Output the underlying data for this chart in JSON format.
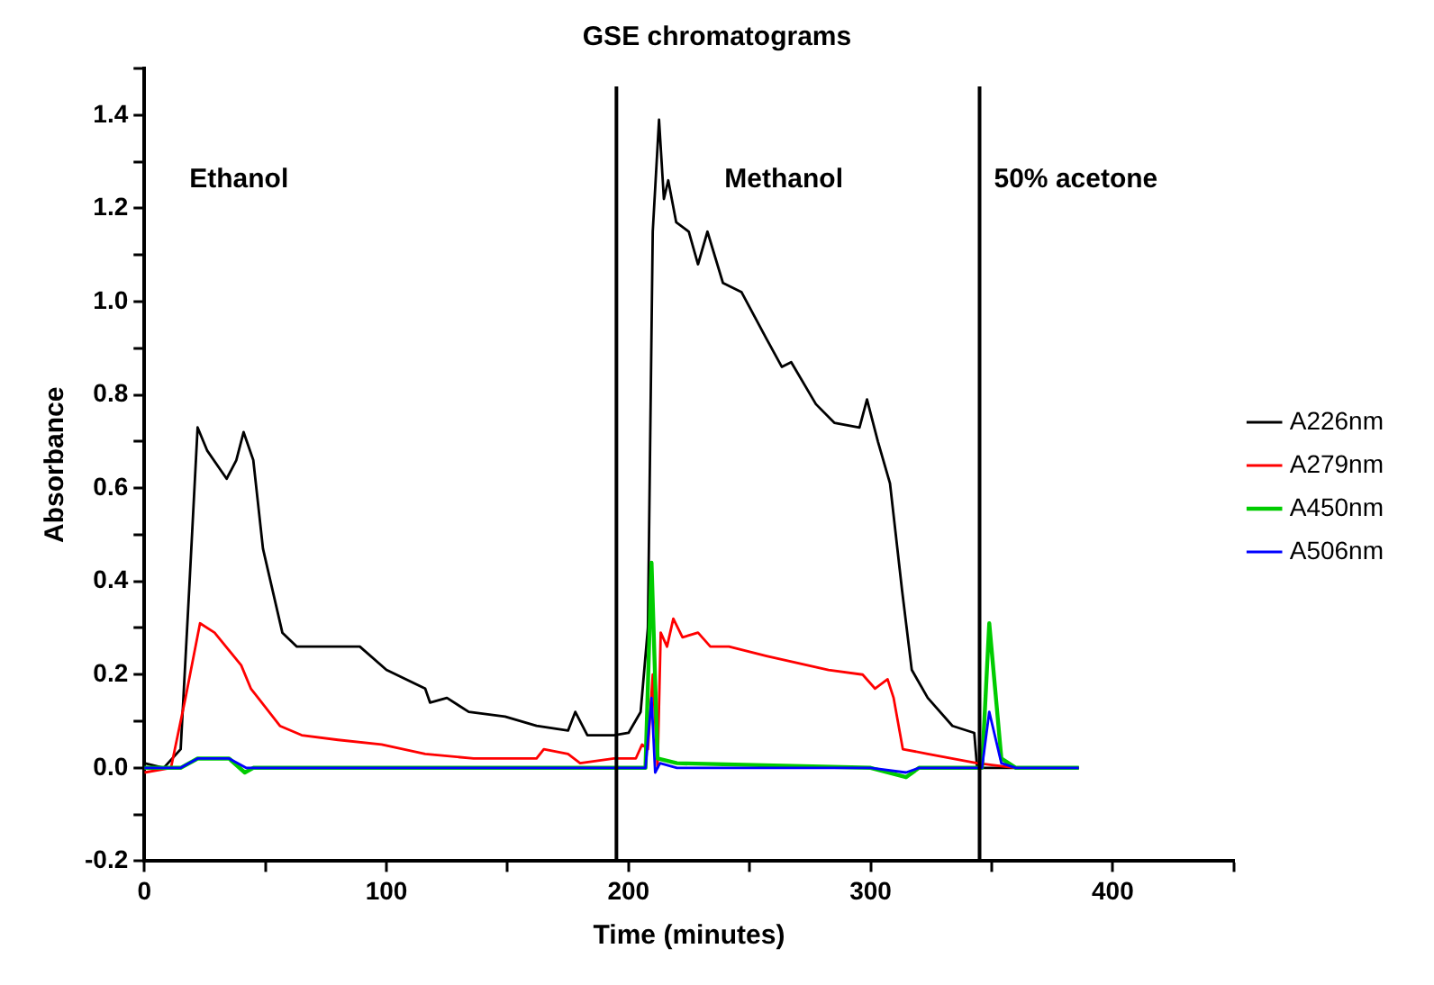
{
  "chart_data": {
    "type": "line",
    "title": "GSE chromatograms",
    "xlabel": "Time (minutes)",
    "ylabel": "Absorbance",
    "xlim": [
      0,
      450
    ],
    "xticks": [
      0,
      {
        "value": 50,
        "label": null
      },
      100,
      {
        "value": 150,
        "label": null
      },
      200,
      {
        "value": 250,
        "label": null
      },
      300,
      {
        "value": 350,
        "label": null
      },
      400,
      {
        "value": 450,
        "label": null
      }
    ],
    "ylim": [
      -0.2,
      1.5
    ],
    "yticks": [
      -0.2,
      {
        "value": -0.1,
        "label": null
      },
      {
        "value": 0,
        "label": "0.0"
      },
      {
        "value": 0.1,
        "label": null
      },
      0.2,
      {
        "value": 0.3,
        "label": null
      },
      0.4,
      {
        "value": 0.5,
        "label": null
      },
      0.6,
      {
        "value": 0.7,
        "label": null
      },
      0.8,
      {
        "value": 0.9,
        "label": null
      },
      {
        "value": 1,
        "label": "1.0"
      },
      {
        "value": 1.1,
        "label": null
      },
      1.2,
      {
        "value": 1.3,
        "label": null
      },
      1.4,
      {
        "value": 1.5,
        "label": null
      }
    ],
    "grid": false,
    "legend": "right",
    "marker": "none",
    "line_style": "solid",
    "ref_lines": [
      {
        "axis": "x",
        "value": 195,
        "color": "#000000"
      },
      {
        "axis": "x",
        "value": 345,
        "color": "#000000"
      }
    ],
    "annotations": [
      "Ethanol",
      "Methanol",
      "50% acetone"
    ],
    "series": [
      {
        "name": "A226nm",
        "color": "#000000",
        "x": [
          0,
          8,
          15,
          18.5,
          22,
          26,
          34,
          38,
          41,
          45,
          49,
          57,
          63,
          83,
          89,
          100,
          116,
          118,
          125,
          134,
          149,
          162,
          175,
          178,
          183,
          194,
          200,
          205,
          208,
          210,
          212.6,
          214.6,
          216.4,
          219.7,
          224.9,
          228.7,
          232.6,
          239,
          246.7,
          257,
          263.3,
          267.2,
          277.4,
          285,
          295.4,
          298.5,
          303,
          308,
          313,
          317,
          323.6,
          333.8,
          342.8,
          344,
          360,
          386
        ],
        "values": [
          0.01,
          0,
          0.04,
          0.38,
          0.73,
          0.68,
          0.62,
          0.66,
          0.72,
          0.66,
          0.47,
          0.29,
          0.26,
          0.26,
          0.26,
          0.21,
          0.17,
          0.14,
          0.15,
          0.12,
          0.11,
          0.09,
          0.08,
          0.12,
          0.07,
          0.07,
          0.075,
          0.12,
          0.3,
          1.15,
          1.39,
          1.22,
          1.26,
          1.17,
          1.15,
          1.08,
          1.15,
          1.04,
          1.02,
          0.92,
          0.86,
          0.87,
          0.78,
          0.74,
          0.73,
          0.79,
          0.7,
          0.61,
          0.38,
          0.21,
          0.15,
          0.09,
          0.075,
          0,
          0,
          0
        ]
      },
      {
        "name": "A279nm",
        "color": "#ff0000",
        "x": [
          0,
          11,
          17,
          23,
          29,
          40,
          44,
          47,
          56,
          65,
          80,
          98,
          116,
          136,
          162,
          165,
          175,
          180,
          194,
          203,
          205.6,
          208,
          210,
          212,
          213.3,
          215.9,
          218.5,
          222.3,
          228.7,
          233.8,
          241.5,
          257,
          282.6,
          296.7,
          301.8,
          307,
          309.5,
          313.3,
          323.6,
          344,
          360,
          386
        ],
        "values": [
          -0.01,
          0,
          0.15,
          0.31,
          0.29,
          0.22,
          0.17,
          0.15,
          0.09,
          0.07,
          0.06,
          0.05,
          0.03,
          0.02,
          0.02,
          0.04,
          0.03,
          0.01,
          0.02,
          0.02,
          0.05,
          0.04,
          0.2,
          0,
          0.29,
          0.26,
          0.32,
          0.28,
          0.29,
          0.26,
          0.26,
          0.24,
          0.21,
          0.2,
          0.17,
          0.19,
          0.15,
          0.04,
          0.03,
          0.01,
          0,
          0
        ]
      },
      {
        "name": "A450nm",
        "color": "#00cc00",
        "x": [
          0,
          15,
          22,
          35,
          41.5,
          45,
          60,
          200,
          207,
          209.5,
          212,
          220,
          300,
          314.6,
          320,
          346,
          349,
          354,
          360,
          386
        ],
        "values": [
          0,
          0,
          0.02,
          0.02,
          -0.01,
          0,
          0,
          0,
          0,
          0.44,
          0.02,
          0.01,
          0,
          -0.02,
          0,
          0,
          0.31,
          0.02,
          0,
          0
        ]
      },
      {
        "name": "A506nm",
        "color": "#0000ff",
        "x": [
          0,
          15,
          22,
          35,
          42,
          60,
          200,
          207,
          209.5,
          211,
          213,
          220,
          300,
          314.6,
          320,
          346,
          349,
          354,
          360,
          386
        ],
        "values": [
          0,
          0,
          0.02,
          0.02,
          0,
          0,
          0,
          0,
          0.15,
          -0.01,
          0.01,
          0,
          0,
          -0.01,
          0,
          0,
          0.12,
          0.01,
          0,
          0
        ]
      }
    ]
  }
}
